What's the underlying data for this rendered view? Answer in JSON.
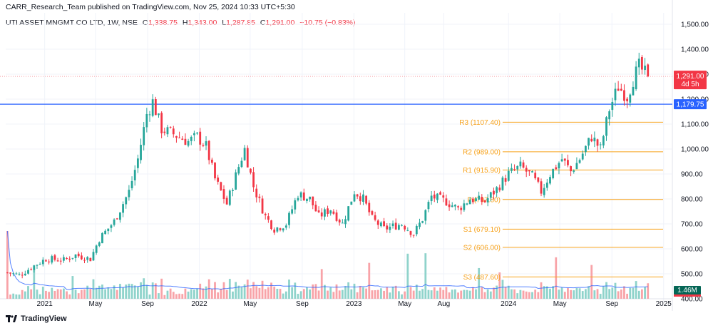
{
  "header": {
    "published": "CARR_Research_Team published on TradingView.com, Nov 25, 2024 10:33 UTC+5:30",
    "symbol": "UTI ASSET MNGMT CO LTD, 1W, NSE",
    "o_label": "O",
    "o_value": "1,338.75",
    "h_label": "H",
    "h_value": "1,343.00",
    "l_label": "L",
    "l_value": "1,287.85",
    "c_label": "C",
    "c_value": "1,291.00",
    "change": "−10.75 (−0.83%)"
  },
  "footer": {
    "logo_text": "TradingView",
    "logo_icon": "tradingview-logo-icon"
  },
  "colors": {
    "up": "#26a69a",
    "down": "#f23645",
    "up_vol": "#8fd3cb",
    "down_vol": "#f8a3a8",
    "resistance": "#2962ff",
    "pivot": "#f7a21b",
    "vol_ma": "#2962ff"
  },
  "chart_data": {
    "type": "candlestick",
    "title": "UTI ASSET MNGMT CO LTD, 1W, NSE",
    "price_axis": {
      "ticks": [
        400,
        500,
        600,
        700,
        800,
        900,
        1000,
        1100,
        1200,
        1300,
        1400,
        1500
      ],
      "tick_labels": [
        "400.00",
        "500.00",
        "600.00",
        "700.00",
        "800.00",
        "900.00",
        "1,000.00",
        "1,100.00",
        "1,200.00",
        "1,300.00",
        "1,400.00",
        "1,500.00"
      ],
      "range": [
        400,
        1500
      ]
    },
    "time_axis": {
      "ticks": [
        "2021-01-01",
        "2021-05-01",
        "2021-09-01",
        "2022-01-01",
        "2022-05-01",
        "2022-09-01",
        "2023-01-01",
        "2023-05-01",
        "2023-08-01",
        "2024-01-01",
        "2024-05-01",
        "2024-09-01",
        "2025-01-01"
      ],
      "tick_labels": [
        "2021",
        "May",
        "Sep",
        "2022",
        "May",
        "Sep",
        "2023",
        "May",
        "Aug",
        "2024",
        "May",
        "Sep",
        "2025"
      ],
      "range": [
        "2020-10-01",
        "2025-01-20"
      ]
    },
    "last_price": {
      "value": 1291.0,
      "label": "1,291.00",
      "countdown": "4d 5h"
    },
    "horizontal_line": {
      "value": 1179.75,
      "label": "1,179.75"
    },
    "pivots": [
      {
        "name": "R3",
        "value": 1107.4,
        "label": "R3 (1107.40)"
      },
      {
        "name": "R2",
        "value": 989.0,
        "label": "R2 (989.00)"
      },
      {
        "name": "R1",
        "value": 915.9,
        "label": "R1 (915.90)"
      },
      {
        "name": "P",
        "value": 797.8,
        "label": "P (797.80)"
      },
      {
        "name": "S1",
        "value": 679.1,
        "label": "S1 (679.10)"
      },
      {
        "name": "S2",
        "value": 606.0,
        "label": "S2 (606.00)"
      },
      {
        "name": "S3",
        "value": 487.6,
        "label": "S3 (487.60)"
      }
    ],
    "pivot_start": "2023-12-18",
    "volume": {
      "last_label": "1.46M"
    },
    "path": [
      [
        "2020-10-05",
        505
      ],
      [
        "2020-11-02",
        495
      ],
      [
        "2020-12-14",
        540
      ],
      [
        "2021-01-04",
        560
      ],
      [
        "2021-02-15",
        555
      ],
      [
        "2021-03-15",
        575
      ],
      [
        "2021-04-19",
        560
      ],
      [
        "2021-05-10",
        640
      ],
      [
        "2021-06-14",
        710
      ],
      [
        "2021-07-19",
        830
      ],
      [
        "2021-08-09",
        960
      ],
      [
        "2021-08-30",
        1140
      ],
      [
        "2021-09-13",
        1190
      ],
      [
        "2021-10-04",
        1080
      ],
      [
        "2021-11-01",
        1060
      ],
      [
        "2021-12-06",
        1030
      ],
      [
        "2021-12-27",
        1050
      ],
      [
        "2022-01-17",
        1010
      ],
      [
        "2022-02-07",
        880
      ],
      [
        "2022-03-07",
        780
      ],
      [
        "2022-04-04",
        930
      ],
      [
        "2022-04-18",
        1000
      ],
      [
        "2022-05-09",
        850
      ],
      [
        "2022-06-06",
        730
      ],
      [
        "2022-06-27",
        680
      ],
      [
        "2022-07-25",
        700
      ],
      [
        "2022-08-22",
        820
      ],
      [
        "2022-09-19",
        800
      ],
      [
        "2022-10-10",
        730
      ],
      [
        "2022-11-07",
        760
      ],
      [
        "2022-12-05",
        700
      ],
      [
        "2023-01-02",
        830
      ],
      [
        "2023-01-23",
        800
      ],
      [
        "2023-02-13",
        720
      ],
      [
        "2023-03-13",
        680
      ],
      [
        "2023-04-03",
        690
      ],
      [
        "2023-04-24",
        700
      ],
      [
        "2023-05-22",
        660
      ],
      [
        "2023-06-12",
        720
      ],
      [
        "2023-07-03",
        810
      ],
      [
        "2023-08-07",
        790
      ],
      [
        "2023-09-04",
        760
      ],
      [
        "2023-10-02",
        800
      ],
      [
        "2023-11-06",
        790
      ],
      [
        "2023-12-04",
        840
      ],
      [
        "2024-01-01",
        900
      ],
      [
        "2024-01-29",
        930
      ],
      [
        "2024-02-26",
        890
      ],
      [
        "2024-03-18",
        830
      ],
      [
        "2024-04-08",
        900
      ],
      [
        "2024-05-06",
        960
      ],
      [
        "2024-05-27",
        910
      ],
      [
        "2024-06-17",
        960
      ],
      [
        "2024-07-15",
        1050
      ],
      [
        "2024-08-05",
        1000
      ],
      [
        "2024-08-26",
        1160
      ],
      [
        "2024-09-16",
        1250
      ],
      [
        "2024-10-07",
        1210
      ],
      [
        "2024-10-21",
        1280
      ],
      [
        "2024-11-04",
        1330
      ],
      [
        "2024-11-18",
        1302
      ]
    ],
    "last_candle": {
      "date": "2024-11-25",
      "open": 1338.75,
      "high": 1343.0,
      "low": 1287.85,
      "close": 1291.0
    }
  }
}
